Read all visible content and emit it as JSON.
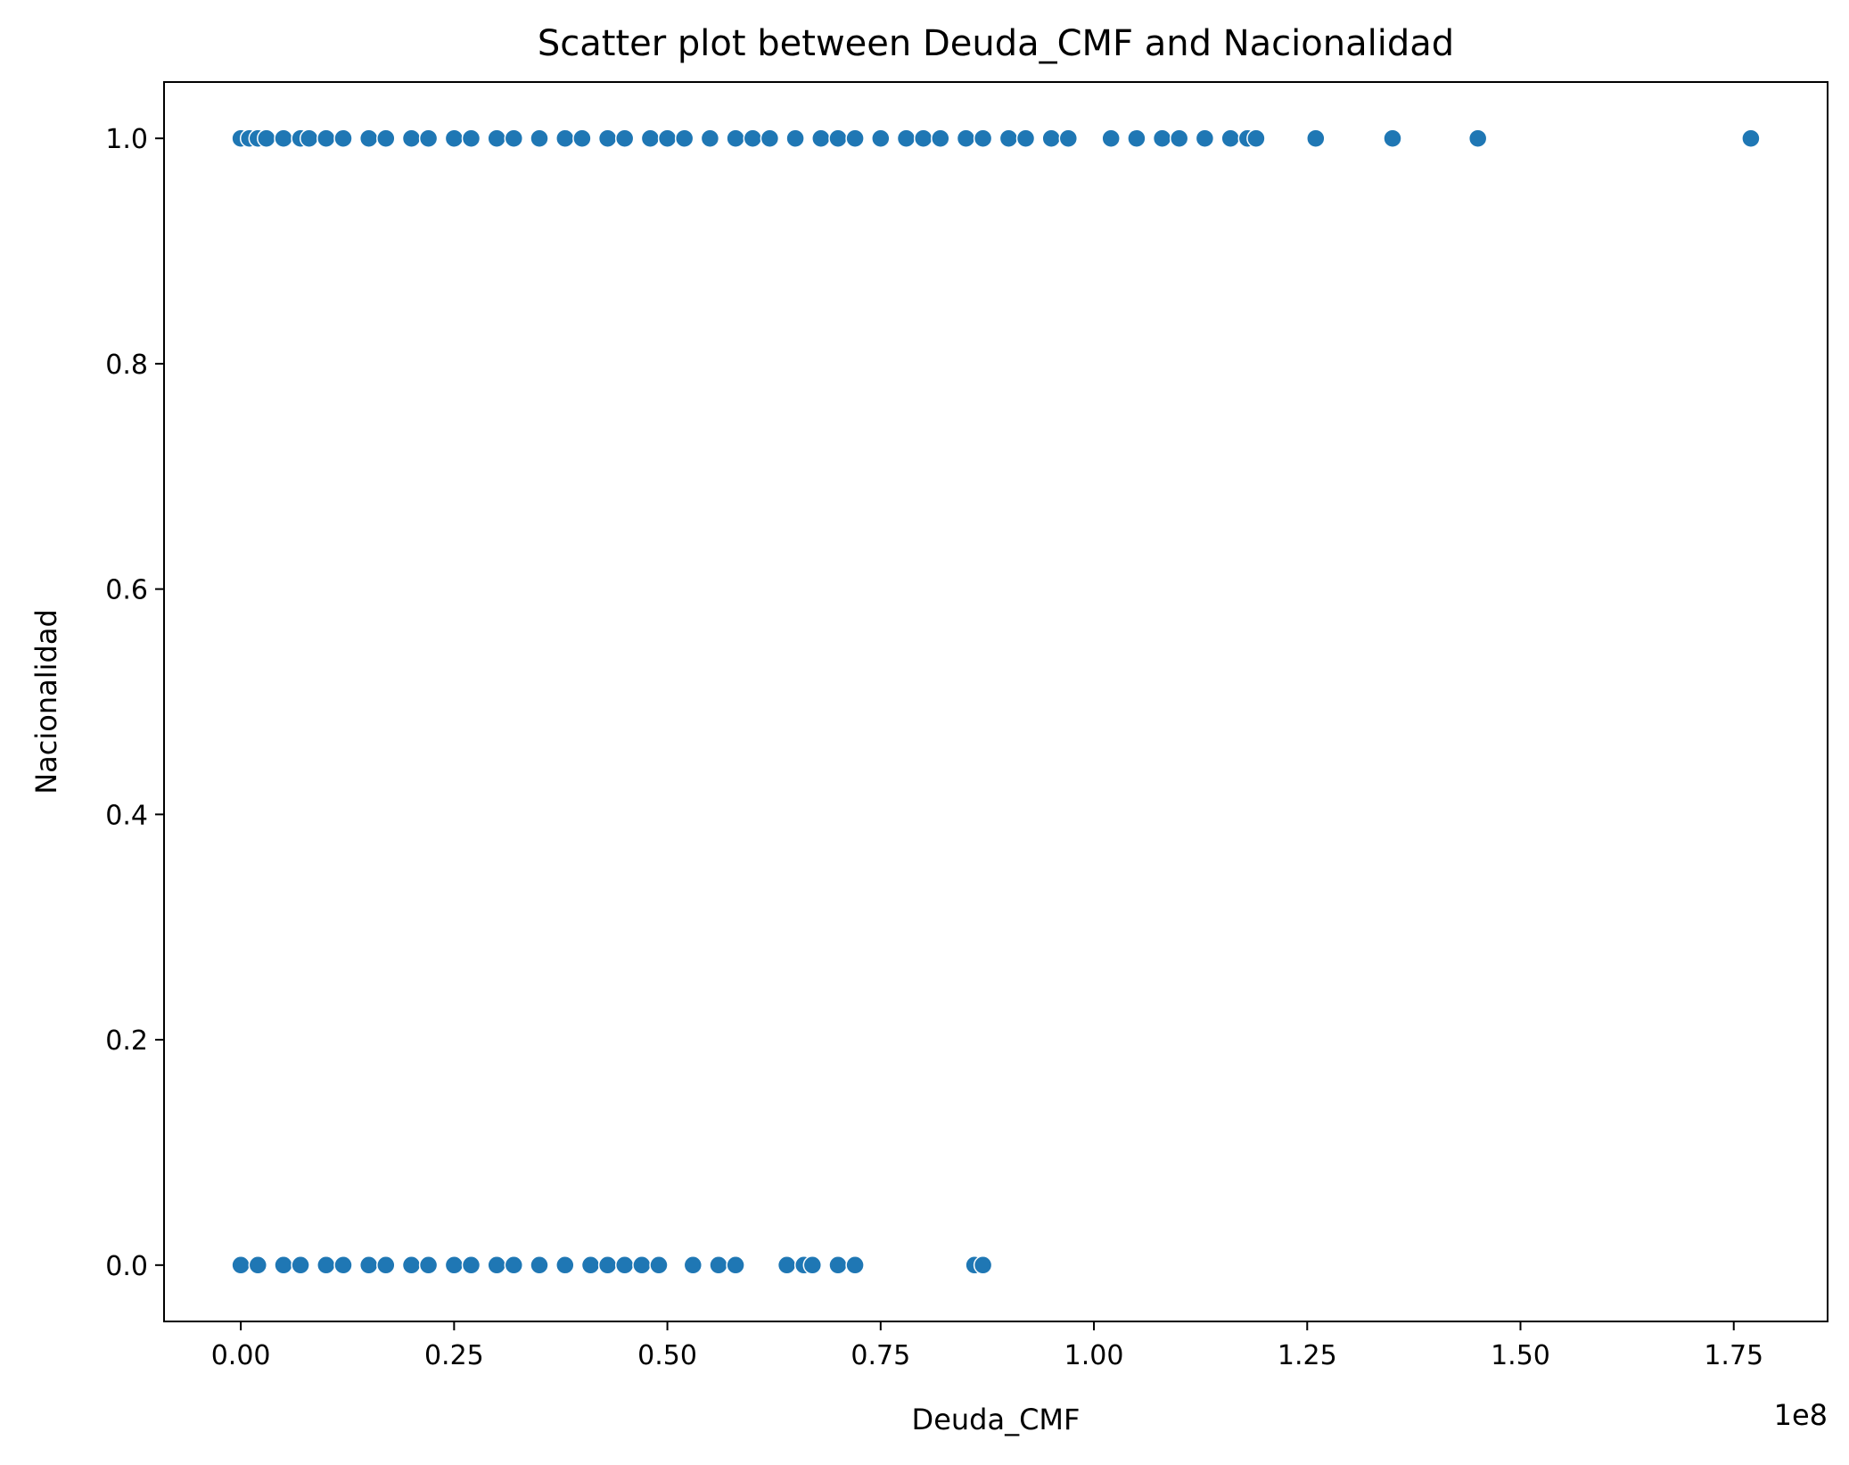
{
  "chart_data": {
    "type": "scatter",
    "title": "Scatter plot between Deuda_CMF and Nacionalidad",
    "xlabel": "Deuda_CMF",
    "ylabel": "Nacionalidad",
    "x_offset_label": "1e8",
    "xlim": [
      -0.09,
      1.86
    ],
    "ylim": [
      -0.05,
      1.05
    ],
    "xticks": [
      0.0,
      0.25,
      0.5,
      0.75,
      1.0,
      1.25,
      1.5,
      1.75
    ],
    "xtick_labels": [
      "0.00",
      "0.25",
      "0.50",
      "0.75",
      "1.00",
      "1.25",
      "1.50",
      "1.75"
    ],
    "yticks": [
      0.0,
      0.2,
      0.4,
      0.6,
      0.8,
      1.0
    ],
    "ytick_labels": [
      "0.0",
      "0.2",
      "0.4",
      "0.6",
      "0.8",
      "1.0"
    ],
    "grid": false,
    "legend": "none",
    "marker_color": "#1f77b4",
    "marker_edge_color": "#ffffff",
    "series": [
      {
        "x": [
          0.0,
          0.01,
          0.02,
          0.03,
          0.05,
          0.07,
          0.08,
          0.1,
          0.12,
          0.15,
          0.17,
          0.2,
          0.22,
          0.25,
          0.27,
          0.3,
          0.32,
          0.35,
          0.38,
          0.4,
          0.43,
          0.45,
          0.48,
          0.5,
          0.52,
          0.55,
          0.58,
          0.6,
          0.62,
          0.65,
          0.68,
          0.7,
          0.72,
          0.75,
          0.78,
          0.8,
          0.82,
          0.85,
          0.87,
          0.9,
          0.92,
          0.95,
          0.97,
          1.02,
          1.05,
          1.08,
          1.1,
          1.13,
          1.16,
          1.18,
          1.19,
          1.26,
          1.35,
          1.45,
          1.77,
          0.0,
          0.02,
          0.05,
          0.07,
          0.1,
          0.12,
          0.15,
          0.17,
          0.2,
          0.22,
          0.25,
          0.27,
          0.3,
          0.32,
          0.35,
          0.38,
          0.41,
          0.43,
          0.45,
          0.47,
          0.49,
          0.53,
          0.56,
          0.58,
          0.64,
          0.66,
          0.67,
          0.7,
          0.72,
          0.86,
          0.87
        ],
        "y": [
          1,
          1,
          1,
          1,
          1,
          1,
          1,
          1,
          1,
          1,
          1,
          1,
          1,
          1,
          1,
          1,
          1,
          1,
          1,
          1,
          1,
          1,
          1,
          1,
          1,
          1,
          1,
          1,
          1,
          1,
          1,
          1,
          1,
          1,
          1,
          1,
          1,
          1,
          1,
          1,
          1,
          1,
          1,
          1,
          1,
          1,
          1,
          1,
          1,
          1,
          1,
          1,
          1,
          1,
          1,
          0,
          0,
          0,
          0,
          0,
          0,
          0,
          0,
          0,
          0,
          0,
          0,
          0,
          0,
          0,
          0,
          0,
          0,
          0,
          0,
          0,
          0,
          0,
          0,
          0,
          0,
          0,
          0,
          0,
          0,
          0
        ]
      }
    ]
  }
}
